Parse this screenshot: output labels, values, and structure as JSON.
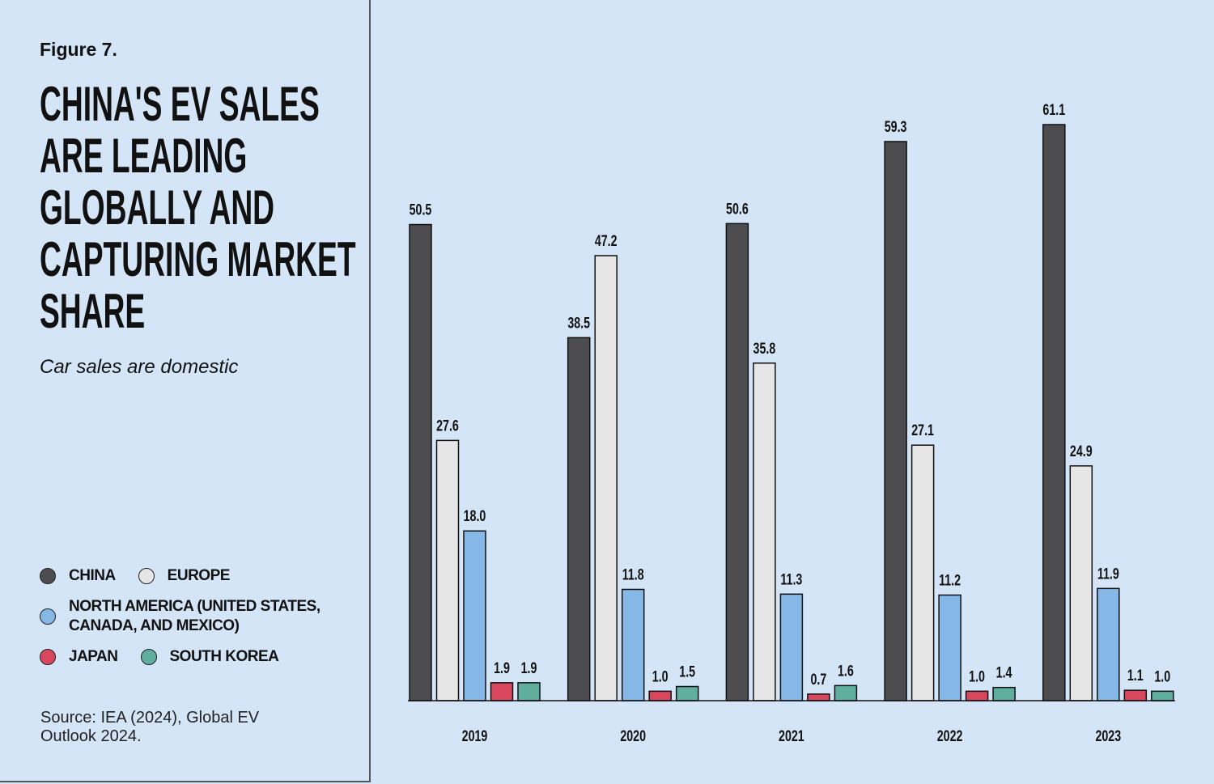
{
  "chart_data": {
    "type": "bar",
    "figure_label": "Figure 7.",
    "title": "CHINA'S EV SALES ARE LEADING GLOBALLY AND CAPTURING MARKET SHARE",
    "subtitle": "Car sales are domestic",
    "source": "Source: IEA (2024), Global EV Outlook 2024.",
    "categories": [
      "2019",
      "2020",
      "2021",
      "2022",
      "2023"
    ],
    "series": [
      {
        "name": "CHINA",
        "color": "#4d4d4f",
        "values": [
          50.5,
          38.5,
          50.6,
          59.3,
          61.1
        ],
        "value_labels": [
          "50.5",
          "38.5",
          "50.6",
          "59.3",
          "61.1"
        ]
      },
      {
        "name": "EUROPE",
        "color": "#e6e6e6",
        "values": [
          27.6,
          47.2,
          35.8,
          27.1,
          24.9
        ],
        "value_labels": [
          "27.6",
          "47.2",
          "35.8",
          "27.1",
          "24.9"
        ]
      },
      {
        "name": "NORTH AMERICA (UNITED STATES, CANADA, AND MEXICO)",
        "color": "#85b8e6",
        "values": [
          18.0,
          11.8,
          11.3,
          11.2,
          11.9
        ],
        "value_labels": [
          "18.0",
          "11.8",
          "11.3",
          "11.2",
          "11.9"
        ]
      },
      {
        "name": "JAPAN",
        "color": "#d9475f",
        "values": [
          1.9,
          1.0,
          0.7,
          1.0,
          1.1
        ],
        "value_labels": [
          "1.9",
          "1.0",
          "0.7",
          "1.0",
          "1.1"
        ]
      },
      {
        "name": "SOUTH KOREA",
        "color": "#5fae9e",
        "values": [
          1.9,
          1.5,
          1.6,
          1.4,
          1.0
        ],
        "value_labels": [
          "1.9",
          "1.5",
          "1.6",
          "1.4",
          "1.0"
        ]
      }
    ]
  }
}
